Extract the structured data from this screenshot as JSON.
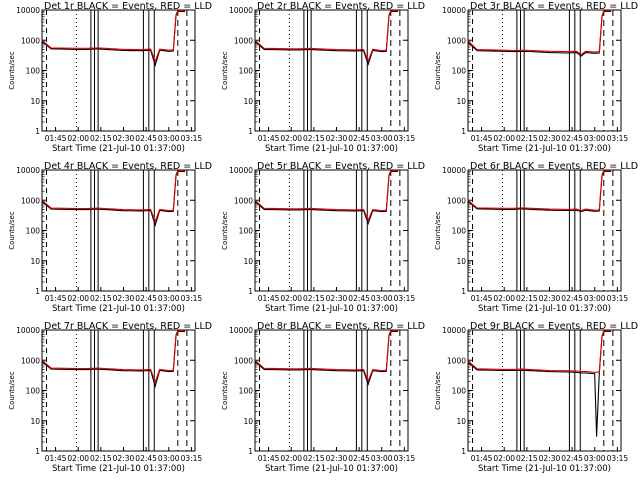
{
  "colors": {
    "events": "#000000",
    "lld": "#e00000",
    "background": "#ffffff"
  },
  "chart_data": [
    {
      "type": "line",
      "title": "Det 1r BLACK = Events, RED = LLD",
      "ylabel": "Counts/sec",
      "xlabel": "Start Time (21-Jul-10 01:37:00)",
      "yscale": "log",
      "ylim": [
        1,
        10000
      ],
      "x_tick_labels": [
        "01:45",
        "02:00",
        "02:15",
        "02:30",
        "02:45",
        "03:00",
        "03:15"
      ],
      "y_tick_labels": [
        "1",
        "10",
        "100",
        "1000",
        "10000"
      ],
      "series": [
        {
          "name": "Events",
          "x": [
            1.6,
            1.7,
            2.0,
            2.1,
            2.2,
            2.3,
            2.5,
            2.7,
            2.8,
            2.85,
            2.9,
            3.0,
            3.05,
            3.08,
            3.1,
            3.15,
            3.18
          ],
          "y": [
            900,
            520,
            500,
            500,
            520,
            500,
            460,
            450,
            470,
            150,
            470,
            430,
            440,
            6500,
            9000,
            9000,
            9000
          ]
        },
        {
          "name": "LLD",
          "x": [
            1.6,
            1.7,
            2.0,
            2.1,
            2.2,
            2.3,
            2.5,
            2.7,
            2.8,
            2.85,
            2.9,
            3.0,
            3.05,
            3.08,
            3.1,
            3.15,
            3.18
          ],
          "y": [
            1000,
            560,
            540,
            540,
            560,
            540,
            500,
            490,
            510,
            200,
            510,
            470,
            480,
            7000,
            9500,
            9500,
            9500
          ]
        }
      ]
    },
    {
      "type": "line",
      "title": "Det 2r BLACK = Events, RED = LLD",
      "ylabel": "Counts/sec",
      "xlabel": "Start Time (21-Jul-10 01:37:00)",
      "yscale": "log",
      "ylim": [
        1,
        10000
      ],
      "x_tick_labels": [
        "01:45",
        "02:00",
        "02:15",
        "02:30",
        "02:45",
        "03:00",
        "03:15"
      ],
      "y_tick_labels": [
        "1",
        "10",
        "100",
        "1000",
        "10000"
      ],
      "series": [
        {
          "name": "Events",
          "x": [
            1.6,
            1.7,
            2.0,
            2.1,
            2.2,
            2.3,
            2.5,
            2.7,
            2.8,
            2.85,
            2.9,
            3.0,
            3.05,
            3.08,
            3.1,
            3.15,
            3.18
          ],
          "y": [
            900,
            500,
            480,
            480,
            500,
            480,
            450,
            440,
            450,
            160,
            460,
            420,
            430,
            6500,
            9000,
            9000,
            9000
          ]
        },
        {
          "name": "LLD",
          "x": [
            1.6,
            1.7,
            2.0,
            2.1,
            2.2,
            2.3,
            2.5,
            2.7,
            2.8,
            2.85,
            2.9,
            3.0,
            3.05,
            3.08,
            3.1,
            3.15,
            3.18
          ],
          "y": [
            1000,
            540,
            520,
            520,
            540,
            520,
            490,
            480,
            490,
            210,
            500,
            460,
            470,
            7000,
            9500,
            9500,
            9500
          ]
        }
      ]
    },
    {
      "type": "line",
      "title": "Det 3r BLACK = Events, RED = LLD",
      "ylabel": "Counts/sec",
      "xlabel": "Start Time (21-Jul-10 01:37:00)",
      "yscale": "log",
      "ylim": [
        1,
        10000
      ],
      "x_tick_labels": [
        "01:45",
        "02:00",
        "02:15",
        "02:30",
        "02:45",
        "03:00",
        "03:15"
      ],
      "y_tick_labels": [
        "1",
        "10",
        "100",
        "1000",
        "10000"
      ],
      "series": [
        {
          "name": "Events",
          "x": [
            1.6,
            1.7,
            2.0,
            2.1,
            2.2,
            2.3,
            2.5,
            2.7,
            2.8,
            2.85,
            2.9,
            3.0,
            3.05,
            3.08,
            3.1,
            3.15,
            3.18
          ],
          "y": [
            850,
            450,
            430,
            420,
            430,
            420,
            390,
            380,
            390,
            300,
            390,
            370,
            380,
            6000,
            9000,
            9000,
            9000
          ]
        },
        {
          "name": "LLD",
          "x": [
            1.6,
            1.7,
            2.0,
            2.1,
            2.2,
            2.3,
            2.5,
            2.7,
            2.8,
            2.85,
            2.9,
            3.0,
            3.05,
            3.08,
            3.1,
            3.15,
            3.18
          ],
          "y": [
            950,
            490,
            470,
            460,
            470,
            460,
            430,
            420,
            430,
            340,
            430,
            410,
            420,
            6500,
            9500,
            9500,
            9500
          ]
        }
      ]
    },
    {
      "type": "line",
      "title": "Det 4r BLACK = Events, RED = LLD",
      "ylabel": "Counts/sec",
      "xlabel": "Start Time (21-Jul-10 01:37:00)",
      "yscale": "log",
      "ylim": [
        1,
        10000
      ],
      "x_tick_labels": [
        "01:45",
        "02:00",
        "02:15",
        "02:30",
        "02:45",
        "03:00",
        "03:15"
      ],
      "y_tick_labels": [
        "1",
        "10",
        "100",
        "1000",
        "10000"
      ],
      "series": [
        {
          "name": "Events",
          "x": [
            1.6,
            1.7,
            2.0,
            2.1,
            2.2,
            2.3,
            2.5,
            2.7,
            2.8,
            2.85,
            2.9,
            3.0,
            3.05,
            3.08,
            3.1,
            3.15,
            3.18
          ],
          "y": [
            900,
            510,
            490,
            490,
            510,
            490,
            450,
            440,
            460,
            150,
            460,
            420,
            430,
            6500,
            9000,
            9000,
            9000
          ]
        },
        {
          "name": "LLD",
          "x": [
            1.6,
            1.7,
            2.0,
            2.1,
            2.2,
            2.3,
            2.5,
            2.7,
            2.8,
            2.85,
            2.9,
            3.0,
            3.05,
            3.08,
            3.1,
            3.15,
            3.18
          ],
          "y": [
            1000,
            550,
            530,
            530,
            550,
            530,
            490,
            480,
            500,
            200,
            500,
            460,
            470,
            7000,
            9500,
            9500,
            9500
          ]
        }
      ]
    },
    {
      "type": "line",
      "title": "Det 5r BLACK = Events, RED = LLD",
      "ylabel": "Counts/sec",
      "xlabel": "Start Time (21-Jul-10 01:37:00)",
      "yscale": "log",
      "ylim": [
        1,
        10000
      ],
      "x_tick_labels": [
        "01:45",
        "02:00",
        "02:15",
        "02:30",
        "02:45",
        "03:00",
        "03:15"
      ],
      "y_tick_labels": [
        "1",
        "10",
        "100",
        "1000",
        "10000"
      ],
      "series": [
        {
          "name": "Events",
          "x": [
            1.6,
            1.7,
            2.0,
            2.1,
            2.2,
            2.3,
            2.5,
            2.7,
            2.8,
            2.85,
            2.9,
            3.0,
            3.05,
            3.08,
            3.1,
            3.15,
            3.18
          ],
          "y": [
            900,
            500,
            480,
            480,
            500,
            480,
            450,
            440,
            450,
            170,
            450,
            420,
            430,
            6500,
            9000,
            9000,
            9000
          ]
        },
        {
          "name": "LLD",
          "x": [
            1.6,
            1.7,
            2.0,
            2.1,
            2.2,
            2.3,
            2.5,
            2.7,
            2.8,
            2.85,
            2.9,
            3.0,
            3.05,
            3.08,
            3.1,
            3.15,
            3.18
          ],
          "y": [
            1000,
            540,
            520,
            520,
            540,
            520,
            490,
            480,
            490,
            220,
            490,
            460,
            470,
            7000,
            9500,
            9500,
            9500
          ]
        }
      ]
    },
    {
      "type": "line",
      "title": "Det 6r BLACK = Events, RED = LLD",
      "ylabel": "Counts/sec",
      "xlabel": "Start Time (21-Jul-10 01:37:00)",
      "yscale": "log",
      "ylim": [
        1,
        10000
      ],
      "x_tick_labels": [
        "01:45",
        "02:00",
        "02:15",
        "02:30",
        "02:45",
        "03:00",
        "03:15"
      ],
      "y_tick_labels": [
        "1",
        "10",
        "100",
        "1000",
        "10000"
      ],
      "series": [
        {
          "name": "Events",
          "x": [
            1.6,
            1.7,
            2.0,
            2.1,
            2.2,
            2.3,
            2.5,
            2.7,
            2.8,
            2.85,
            2.9,
            3.0,
            3.05,
            3.08,
            3.1,
            3.15,
            3.18
          ],
          "y": [
            900,
            520,
            500,
            500,
            520,
            500,
            470,
            460,
            470,
            420,
            470,
            430,
            440,
            6500,
            9000,
            9000,
            9000
          ]
        },
        {
          "name": "LLD",
          "x": [
            1.6,
            1.7,
            2.0,
            2.1,
            2.2,
            2.3,
            2.5,
            2.7,
            2.8,
            2.85,
            2.9,
            3.0,
            3.05,
            3.08,
            3.1,
            3.15,
            3.18
          ],
          "y": [
            1000,
            560,
            540,
            540,
            560,
            540,
            510,
            500,
            510,
            460,
            510,
            470,
            480,
            7000,
            9500,
            9500,
            9500
          ]
        }
      ]
    },
    {
      "type": "line",
      "title": "Det 7r BLACK = Events, RED = LLD",
      "ylabel": "Counts/sec",
      "xlabel": "Start Time (21-Jul-10 01:37:00)",
      "yscale": "log",
      "ylim": [
        1,
        10000
      ],
      "x_tick_labels": [
        "01:45",
        "02:00",
        "02:15",
        "02:30",
        "02:45",
        "03:00",
        "03:15"
      ],
      "y_tick_labels": [
        "1",
        "10",
        "100",
        "1000",
        "10000"
      ],
      "series": [
        {
          "name": "Events",
          "x": [
            1.6,
            1.7,
            2.0,
            2.1,
            2.2,
            2.3,
            2.5,
            2.7,
            2.8,
            2.85,
            2.9,
            3.0,
            3.05,
            3.08,
            3.1,
            3.15,
            3.18
          ],
          "y": [
            900,
            510,
            490,
            490,
            510,
            490,
            450,
            440,
            460,
            140,
            460,
            420,
            430,
            6500,
            9000,
            9000,
            9000
          ]
        },
        {
          "name": "LLD",
          "x": [
            1.6,
            1.7,
            2.0,
            2.1,
            2.2,
            2.3,
            2.5,
            2.7,
            2.8,
            2.85,
            2.9,
            3.0,
            3.05,
            3.08,
            3.1,
            3.15,
            3.18
          ],
          "y": [
            1000,
            550,
            530,
            530,
            550,
            530,
            490,
            480,
            500,
            190,
            500,
            460,
            470,
            7000,
            9500,
            9500,
            9500
          ]
        }
      ]
    },
    {
      "type": "line",
      "title": "Det 8r BLACK = Events, RED = LLD",
      "ylabel": "Counts/sec",
      "xlabel": "Start Time (21-Jul-10 01:37:00)",
      "yscale": "log",
      "ylim": [
        1,
        10000
      ],
      "x_tick_labels": [
        "01:45",
        "02:00",
        "02:15",
        "02:30",
        "02:45",
        "03:00",
        "03:15"
      ],
      "y_tick_labels": [
        "1",
        "10",
        "100",
        "1000",
        "10000"
      ],
      "series": [
        {
          "name": "Events",
          "x": [
            1.6,
            1.7,
            2.0,
            2.1,
            2.2,
            2.3,
            2.5,
            2.7,
            2.8,
            2.85,
            2.9,
            3.0,
            3.05,
            3.08,
            3.1,
            3.15,
            3.18
          ],
          "y": [
            900,
            500,
            480,
            480,
            500,
            480,
            450,
            440,
            450,
            160,
            450,
            420,
            430,
            6500,
            9000,
            9000,
            9000
          ]
        },
        {
          "name": "LLD",
          "x": [
            1.6,
            1.7,
            2.0,
            2.1,
            2.2,
            2.3,
            2.5,
            2.7,
            2.8,
            2.85,
            2.9,
            3.0,
            3.05,
            3.08,
            3.1,
            3.15,
            3.18
          ],
          "y": [
            1000,
            540,
            520,
            520,
            540,
            520,
            490,
            480,
            490,
            210,
            490,
            460,
            470,
            7000,
            9500,
            9500,
            9500
          ]
        }
      ]
    },
    {
      "type": "line",
      "title": "Det 9r BLACK = Events, RED = LLD",
      "ylabel": "Counts/sec",
      "xlabel": "Start Time (21-Jul-10 01:37:00)",
      "yscale": "log",
      "ylim": [
        1,
        10000
      ],
      "x_tick_labels": [
        "01:45",
        "02:00",
        "02:15",
        "02:30",
        "02:45",
        "03:00",
        "03:15"
      ],
      "y_tick_labels": [
        "1",
        "10",
        "100",
        "1000",
        "10000"
      ],
      "series": [
        {
          "name": "Events",
          "x": [
            1.6,
            1.7,
            2.0,
            2.1,
            2.2,
            2.3,
            2.5,
            2.7,
            2.8,
            2.85,
            2.9,
            3.0,
            3.02,
            3.05,
            3.08,
            3.1,
            3.15,
            3.18
          ],
          "y": [
            850,
            480,
            460,
            460,
            470,
            450,
            420,
            410,
            400,
            380,
            380,
            360,
            3,
            380,
            6000,
            9000,
            9000,
            9000
          ]
        },
        {
          "name": "LLD",
          "x": [
            1.6,
            1.7,
            2.0,
            2.1,
            2.2,
            2.3,
            2.5,
            2.7,
            2.8,
            2.85,
            2.9,
            3.0,
            3.02,
            3.05,
            3.08,
            3.1,
            3.15,
            3.18
          ],
          "y": [
            950,
            520,
            500,
            500,
            510,
            490,
            460,
            450,
            440,
            420,
            420,
            400,
            400,
            420,
            6500,
            9500,
            9500,
            9500
          ]
        }
      ]
    }
  ]
}
